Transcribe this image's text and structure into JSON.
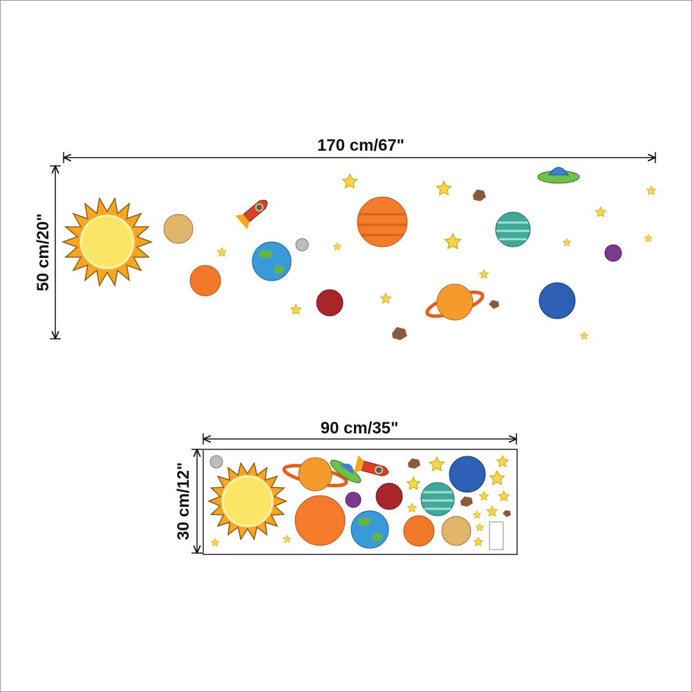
{
  "full_layout": {
    "width_label": "170 cm/67\"",
    "height_label": "50 cm/20\""
  },
  "sheet": {
    "width_label": "90 cm/35\"",
    "height_label": "30 cm/12\""
  }
}
